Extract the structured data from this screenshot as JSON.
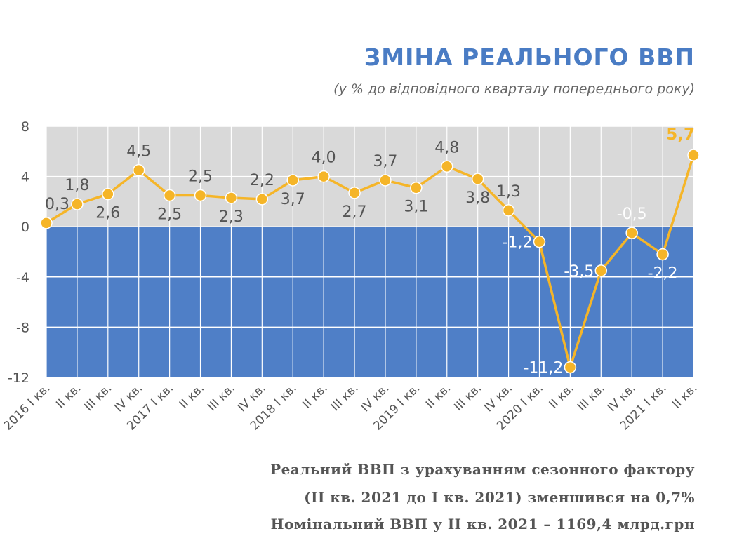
{
  "title": "ЗМІНА РЕАЛЬНОГО ВВП",
  "subtitle": "(у % до відповідного кварталу попереднього року)",
  "notes": {
    "line1": "Реальний ВВП з урахуванням сезонного фактору",
    "line2": "(II кв. 2021 до I кв. 2021) зменшився на 0,7%",
    "line3": "Номінальний ВВП у II кв. 2021 – 1169,4 млрд.грн"
  },
  "colors": {
    "line": "#f5b528",
    "positive_band": "#d9d9d9",
    "negative_band": "#4f7fc7",
    "title": "#4a7cc4",
    "highlight_label": "#f5b528"
  },
  "chart_data": {
    "type": "line",
    "categories": [
      "2016 I кв.",
      "II кв.",
      "III кв.",
      "IV кв.",
      "2017 I кв.",
      "II кв.",
      "III кв.",
      "IV кв.",
      "2018 I кв.",
      "II кв.",
      "III кв.",
      "IV кв.",
      "2019 I кв.",
      "II кв.",
      "III кв.",
      "IV кв.",
      "2020 I кв.",
      "II кв.",
      "III кв.",
      "IV кв.",
      "2021 I кв.",
      "II кв."
    ],
    "values": [
      0.3,
      1.8,
      2.6,
      4.5,
      2.5,
      2.5,
      2.3,
      2.2,
      3.7,
      4.0,
      2.7,
      3.7,
      3.1,
      4.8,
      3.8,
      1.3,
      -1.2,
      -11.2,
      -3.5,
      -0.5,
      -2.2,
      5.7
    ],
    "value_labels": [
      "0,3",
      "1,8",
      "2,6",
      "4,5",
      "2,5",
      "2,5",
      "2,3",
      "2,2",
      "3,7",
      "4,0",
      "2,7",
      "3,7",
      "3,1",
      "4,8",
      "3,8",
      "1,3",
      "-1,2",
      "-11,2",
      "-3,5",
      "-0,5",
      "-2,2",
      "5,7"
    ],
    "label_position": [
      "above",
      "above",
      "below",
      "above",
      "below",
      "above",
      "below",
      "above",
      "below",
      "above",
      "below",
      "above",
      "below",
      "above",
      "below",
      "above",
      "left",
      "left",
      "left",
      "above",
      "below",
      "above"
    ],
    "highlight_last": true,
    "ylim": [
      -12,
      8
    ],
    "yticks": [
      8,
      4,
      0,
      -4,
      -8,
      -12
    ],
    "grid": true,
    "legend": "none"
  }
}
